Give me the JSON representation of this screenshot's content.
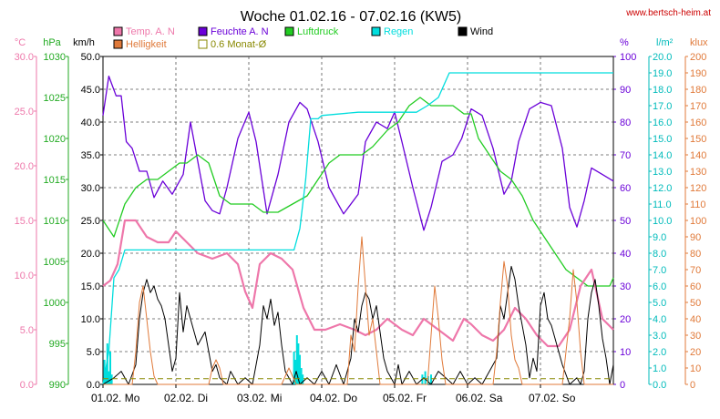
{
  "chart_data": {
    "type": "line",
    "title": "Woche 01.02.16 - 07.02.16 (KW5)",
    "watermark": "www.bertsch-heim.at",
    "x_categories": [
      "01.02. Mo",
      "02.02. Di",
      "03.02. Mi",
      "04.02. Do",
      "05.02. Fr",
      "06.02. Sa",
      "07.02. So"
    ],
    "x_range": [
      0,
      7
    ],
    "legend": [
      {
        "name": "Temp. A. N",
        "color": "#ee77aa"
      },
      {
        "name": "Feuchte A. N",
        "color": "#6a00d8"
      },
      {
        "name": "Luftdruck",
        "color": "#22cc22"
      },
      {
        "name": "Regen",
        "color": "#00dddd"
      },
      {
        "name": "Wind",
        "color": "#000000"
      },
      {
        "name": "Helligkeit",
        "color": "#e07a3a"
      },
      {
        "name": "0.6 Monat-Ø",
        "color": "#888800"
      }
    ],
    "axes": {
      "temp": {
        "unit": "°C",
        "min": 0,
        "max": 30,
        "step": 5,
        "color": "#ee77aa",
        "labels": [
          "0.0",
          "5.0",
          "10.0",
          "15.0",
          "20.0",
          "25.0",
          "30.0"
        ]
      },
      "pressure": {
        "unit": "hPa",
        "min": 990,
        "max": 1030,
        "step": 5,
        "color": "#22aa22",
        "labels": [
          "990",
          "995",
          "1000",
          "1005",
          "1010",
          "1015",
          "1020",
          "1025",
          "1030"
        ]
      },
      "wind": {
        "unit": "km/h",
        "min": 0,
        "max": 50,
        "step": 5,
        "color": "#000000",
        "labels": [
          "0.0",
          "5.0",
          "10.0",
          "15.0",
          "20.0",
          "25.0",
          "30.0",
          "35.0",
          "40.0",
          "45.0",
          "50.0"
        ]
      },
      "humidity": {
        "unit": "%",
        "min": 0,
        "max": 100,
        "step": 10,
        "color": "#6a00d8",
        "labels": [
          "0",
          "10",
          "20",
          "30",
          "40",
          "50",
          "60",
          "70",
          "80",
          "90",
          "100"
        ]
      },
      "rain": {
        "unit": "l/m²",
        "min": 0,
        "max": 20,
        "step": 1,
        "color": "#00bbbb",
        "labels": [
          "0.0",
          "1.0",
          "2.0",
          "3.0",
          "4.0",
          "5.0",
          "6.0",
          "7.0",
          "8.0",
          "9.0",
          "10.0",
          "11.0",
          "12.0",
          "13.0",
          "14.0",
          "15.0",
          "16.0",
          "17.0",
          "18.0",
          "19.0",
          "20.0"
        ]
      },
      "lux": {
        "unit": "klux",
        "min": 0,
        "max": 200,
        "step": 10,
        "color": "#e07a3a",
        "labels": [
          "0",
          "10",
          "20",
          "30",
          "40",
          "50",
          "60",
          "70",
          "80",
          "90",
          "100",
          "110",
          "120",
          "130",
          "140",
          "150",
          "160",
          "170",
          "180",
          "190",
          "200"
        ]
      }
    },
    "series": [
      {
        "name": "Feuchte A. N",
        "axis": "humidity",
        "color": "#6a00d8",
        "width": 1.3,
        "x": [
          0,
          0.08,
          0.18,
          0.25,
          0.32,
          0.4,
          0.5,
          0.6,
          0.7,
          0.82,
          0.95,
          1.1,
          1.2,
          1.4,
          1.5,
          1.6,
          1.7,
          1.85,
          2.0,
          2.1,
          2.25,
          2.4,
          2.55,
          2.7,
          2.8,
          2.95,
          3.1,
          3.3,
          3.5,
          3.6,
          3.75,
          3.9,
          4.0,
          4.1,
          4.25,
          4.4,
          4.5,
          4.65,
          4.8,
          4.92,
          5.05,
          5.2,
          5.35,
          5.5,
          5.6,
          5.7,
          5.85,
          6.0,
          6.15,
          6.3,
          6.4,
          6.5,
          6.6,
          6.7,
          6.85,
          7.0
        ],
        "y": [
          82,
          94,
          88,
          88,
          74,
          72,
          65,
          65,
          57,
          62,
          58,
          64,
          80,
          56,
          53,
          52,
          60,
          75,
          83,
          74,
          52,
          64,
          80,
          86,
          84,
          74,
          60,
          52,
          58,
          74,
          80,
          78,
          83,
          74,
          60,
          47,
          54,
          68,
          70,
          75,
          84,
          82,
          72,
          58,
          62,
          74,
          84,
          86,
          85,
          72,
          54,
          48,
          56,
          66,
          64,
          62
        ]
      },
      {
        "name": "Luftdruck",
        "axis": "pressure",
        "color": "#22cc22",
        "width": 1.3,
        "x": [
          0,
          0.15,
          0.3,
          0.45,
          0.6,
          0.75,
          0.9,
          1.05,
          1.15,
          1.3,
          1.45,
          1.6,
          1.75,
          1.9,
          2.05,
          2.2,
          2.4,
          2.6,
          2.8,
          2.95,
          3.1,
          3.25,
          3.4,
          3.55,
          3.7,
          3.9,
          4.05,
          4.2,
          4.35,
          4.5,
          4.65,
          4.8,
          4.95,
          5.05,
          5.15,
          5.3,
          5.45,
          5.6,
          5.75,
          5.9,
          6.05,
          6.2,
          6.35,
          6.5,
          6.65,
          6.8,
          6.95,
          7.0
        ],
        "y": [
          1010,
          1008,
          1012,
          1014,
          1015,
          1015,
          1016,
          1017,
          1017,
          1018,
          1017,
          1013,
          1012,
          1012,
          1012,
          1011,
          1011,
          1012,
          1013,
          1015,
          1017,
          1018,
          1018,
          1018,
          1019,
          1021,
          1022,
          1024,
          1025,
          1024,
          1024,
          1024,
          1023,
          1023,
          1020,
          1018,
          1016,
          1015,
          1013,
          1010,
          1008,
          1006,
          1004,
          1003,
          1002,
          1002,
          1002,
          1003
        ]
      },
      {
        "name": "Temp. A. N",
        "axis": "temp",
        "color": "#ee77aa",
        "width": 2.2,
        "x": [
          0,
          0.1,
          0.2,
          0.3,
          0.45,
          0.6,
          0.75,
          0.9,
          1.0,
          1.15,
          1.3,
          1.5,
          1.7,
          1.85,
          1.95,
          2.05,
          2.15,
          2.3,
          2.45,
          2.6,
          2.75,
          2.9,
          3.05,
          3.25,
          3.45,
          3.6,
          3.75,
          3.9,
          4.1,
          4.25,
          4.4,
          4.6,
          4.8,
          4.95,
          5.05,
          5.2,
          5.35,
          5.5,
          5.65,
          5.8,
          5.95,
          6.1,
          6.25,
          6.4,
          6.55,
          6.7,
          6.85,
          7.0
        ],
        "y": [
          9.0,
          9.5,
          11.0,
          15.0,
          15.0,
          13.5,
          13.0,
          13.0,
          14.0,
          13.0,
          12.0,
          11.5,
          12.0,
          11.0,
          8.5,
          7.0,
          11.0,
          12.0,
          11.5,
          10.5,
          7.0,
          5.0,
          5.0,
          5.5,
          5.0,
          4.5,
          5.0,
          6.0,
          5.0,
          4.5,
          6.0,
          5.0,
          4.0,
          6.0,
          5.5,
          4.5,
          4.0,
          5.0,
          7.0,
          6.0,
          4.5,
          3.5,
          3.5,
          5.0,
          9.0,
          10.5,
          6.0,
          5.0
        ]
      },
      {
        "name": "Regen",
        "axis": "rain",
        "color": "#00dddd",
        "width": 1.3,
        "x": [
          0,
          0.08,
          0.15,
          0.22,
          0.3,
          0.5,
          1.0,
          1.5,
          2.0,
          2.5,
          2.62,
          2.7,
          2.78,
          2.85,
          2.95,
          3.0,
          3.5,
          4.0,
          4.3,
          4.45,
          4.6,
          4.75,
          7.0
        ],
        "y": [
          0.0,
          2.0,
          6.5,
          7.0,
          8.2,
          8.2,
          8.2,
          8.2,
          8.2,
          8.2,
          8.2,
          9.5,
          12.5,
          16.2,
          16.2,
          16.4,
          16.6,
          16.6,
          16.6,
          17.0,
          17.5,
          19.0,
          19.0
        ]
      },
      {
        "name": "Wind",
        "axis": "wind",
        "color": "#000000",
        "width": 1,
        "x": [
          0,
          0.15,
          0.25,
          0.35,
          0.45,
          0.5,
          0.55,
          0.6,
          0.65,
          0.7,
          0.75,
          0.8,
          0.85,
          0.95,
          1.0,
          1.05,
          1.1,
          1.15,
          1.2,
          1.3,
          1.4,
          1.5,
          1.55,
          1.6,
          1.7,
          1.75,
          1.85,
          1.95,
          2.05,
          2.15,
          2.2,
          2.25,
          2.3,
          2.35,
          2.4,
          2.45,
          2.5,
          2.55,
          2.6,
          2.65,
          2.7,
          2.8,
          2.9,
          3.0,
          3.1,
          3.2,
          3.3,
          3.4,
          3.45,
          3.5,
          3.55,
          3.6,
          3.65,
          3.7,
          3.75,
          3.8,
          3.85,
          3.9,
          3.95,
          4.0,
          4.05,
          4.1,
          4.2,
          4.3,
          4.4,
          4.5,
          4.6,
          4.7,
          4.8,
          4.9,
          5.0,
          5.1,
          5.2,
          5.3,
          5.4,
          5.45,
          5.5,
          5.55,
          5.6,
          5.65,
          5.7,
          5.75,
          5.8,
          5.85,
          5.9,
          5.95,
          6.0,
          6.05,
          6.1,
          6.15,
          6.2,
          6.3,
          6.4,
          6.5,
          6.55,
          6.6,
          6.65,
          6.7,
          6.75,
          6.8,
          6.85,
          6.9,
          6.95,
          7.0
        ],
        "y": [
          0,
          1,
          2,
          0,
          3,
          10,
          14,
          16,
          14,
          15,
          13,
          12,
          10,
          2,
          4,
          14,
          8,
          12,
          10,
          6,
          8,
          2,
          3,
          1,
          0,
          2,
          0,
          1,
          0,
          6,
          12,
          10,
          13,
          9,
          11,
          6,
          2,
          1,
          0,
          2,
          0,
          1,
          0,
          2,
          0,
          3,
          0,
          4,
          10,
          8,
          12,
          14,
          13,
          10,
          12,
          8,
          4,
          2,
          1,
          0,
          3,
          0,
          2,
          0,
          1,
          0,
          2,
          1,
          0,
          2,
          0,
          1,
          0,
          2,
          4,
          12,
          10,
          14,
          18,
          16,
          12,
          9,
          6,
          1,
          4,
          2,
          12,
          14,
          10,
          9,
          7,
          3,
          0,
          1,
          0,
          2,
          10,
          14,
          16,
          12,
          7,
          4,
          0,
          3
        ]
      },
      {
        "name": "Helligkeit",
        "axis": "lux",
        "color": "#e07a3a",
        "width": 1,
        "x": [
          0,
          0.4,
          0.45,
          0.5,
          0.55,
          0.6,
          0.65,
          0.7,
          0.75,
          1.45,
          1.5,
          1.55,
          1.6,
          1.65,
          2.45,
          2.5,
          2.55,
          2.6,
          2.65,
          3.35,
          3.4,
          3.45,
          3.5,
          3.55,
          3.6,
          3.65,
          3.7,
          3.75,
          3.8,
          4.45,
          4.5,
          4.55,
          4.6,
          4.65,
          4.7,
          5.35,
          5.4,
          5.45,
          5.5,
          5.55,
          5.6,
          5.65,
          5.7,
          5.75,
          6.3,
          6.35,
          6.4,
          6.45,
          6.5,
          6.55,
          6.6,
          7.0
        ],
        "y": [
          0,
          0,
          20,
          50,
          60,
          40,
          20,
          5,
          0,
          0,
          10,
          15,
          10,
          0,
          0,
          5,
          10,
          5,
          0,
          0,
          30,
          20,
          60,
          90,
          60,
          30,
          40,
          20,
          0,
          0,
          30,
          60,
          40,
          15,
          0,
          0,
          20,
          50,
          75,
          60,
          30,
          15,
          10,
          0,
          0,
          20,
          40,
          70,
          50,
          20,
          0,
          0
        ]
      },
      {
        "name": "0.6 Monat-Ø",
        "axis": "rain",
        "color": "#888800",
        "width": 1,
        "dashed": true,
        "x": [
          0,
          7
        ],
        "y": [
          0.35,
          0.35
        ]
      }
    ],
    "rain_bars": {
      "name": "Regen",
      "axis": "rain",
      "color": "#00dddd",
      "x": [
        0.02,
        0.04,
        0.06,
        0.08,
        0.1,
        0.12,
        2.62,
        2.64,
        2.66,
        2.68,
        2.7,
        2.72,
        2.74,
        4.38,
        4.42,
        4.46,
        4.5
      ],
      "y": [
        1.5,
        1.0,
        2.5,
        0.8,
        2.0,
        0.6,
        2.0,
        1.5,
        3.0,
        2.5,
        1.8,
        1.0,
        0.6,
        0.6,
        0.8,
        0.5,
        0.6
      ]
    }
  }
}
